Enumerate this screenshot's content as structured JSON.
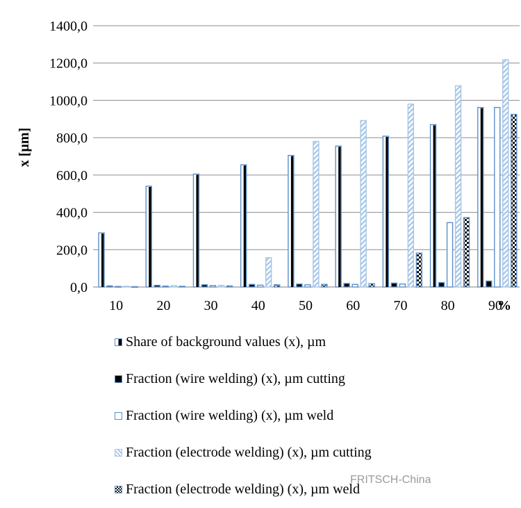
{
  "chart_data": {
    "type": "bar",
    "title": "",
    "xlabel": "",
    "ylabel": "x [µm]",
    "x_unit": "%",
    "categories": [
      "10",
      "20",
      "30",
      "40",
      "50",
      "60",
      "70",
      "80",
      "90"
    ],
    "y_tick_labels": [
      "0,0",
      "200,0",
      "400,0",
      "600,0",
      "800,0",
      "1000,0",
      "1200,0",
      "1400,0"
    ],
    "ylim": [
      0,
      1400
    ],
    "grid": true,
    "legend_position": "bottom",
    "series": [
      {
        "name": "Share of background values (x), µm",
        "values": [
          290,
          540,
          605,
          655,
          705,
          755,
          808,
          870,
          962
        ],
        "style": "half-dark",
        "colors": {
          "fill": "#000000",
          "stroke": "#5b8fc9"
        }
      },
      {
        "name": "Fraction (wire welding) (x), µm cutting",
        "values": [
          6,
          9,
          12,
          14,
          16,
          19,
          21,
          24,
          32
        ],
        "style": "solid",
        "colors": {
          "fill": "#000000",
          "stroke": "#5b8fc9"
        }
      },
      {
        "name": "Fraction (wire welding) (x), µm weld",
        "values": [
          3,
          5,
          8,
          10,
          12,
          14,
          16,
          345,
          962
        ],
        "style": "hollow",
        "colors": {
          "fill": "#ffffff",
          "stroke": "#5b8fc9"
        }
      },
      {
        "name": "Fraction (electrode welding) (x), µm cutting",
        "values": [
          4,
          7,
          9,
          157,
          780,
          892,
          980,
          1078,
          1218
        ],
        "style": "hatched",
        "colors": {
          "fill": "#b8d4ee",
          "stroke": "#a6c6e6"
        }
      },
      {
        "name": "Fraction (electrode welding) (x), µm weld",
        "values": [
          2,
          4,
          6,
          12,
          14,
          18,
          182,
          372,
          925
        ],
        "style": "checker",
        "colors": {
          "fill": "#000000",
          "stroke": "#5b8fc9"
        }
      }
    ]
  },
  "watermark": "FRITSCH-China"
}
